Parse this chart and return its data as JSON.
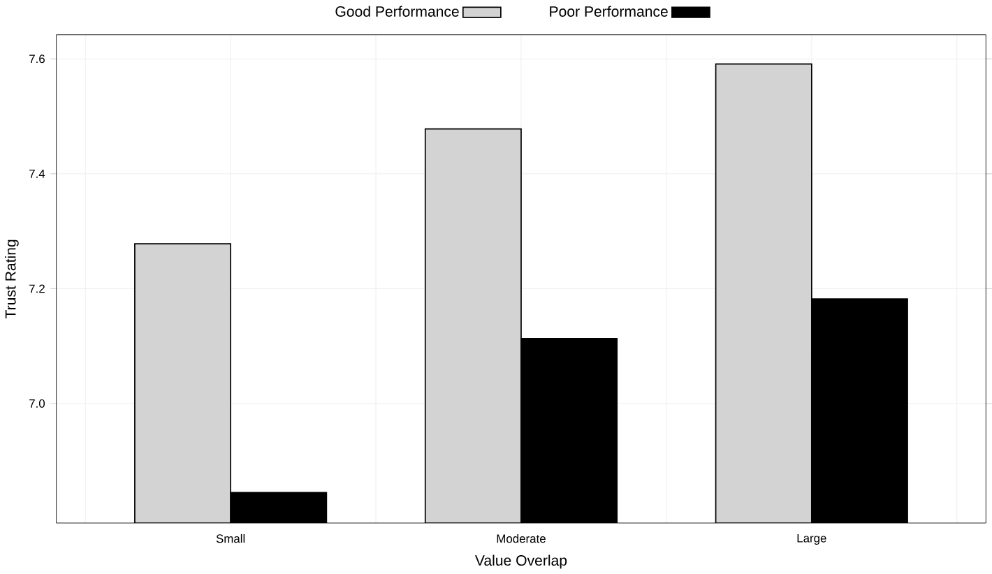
{
  "chart_data": {
    "type": "bar",
    "xlabel": "Value Overlap",
    "ylabel": "Trust Rating",
    "categories": [
      "Small",
      "Moderate",
      "Large"
    ],
    "series": [
      {
        "name": "Good Performance",
        "color": "#d3d3d3",
        "values": [
          7.278,
          7.478,
          7.591
        ]
      },
      {
        "name": "Poor Performance",
        "color": "#000000",
        "values": [
          6.845,
          7.113,
          7.182
        ]
      }
    ],
    "ylim": [
      6.792,
      7.642
    ],
    "yticks": [
      {
        "value": 7.0,
        "label": "7.0"
      },
      7.2,
      7.4,
      7.6
    ],
    "grid": true,
    "legend": "top"
  }
}
